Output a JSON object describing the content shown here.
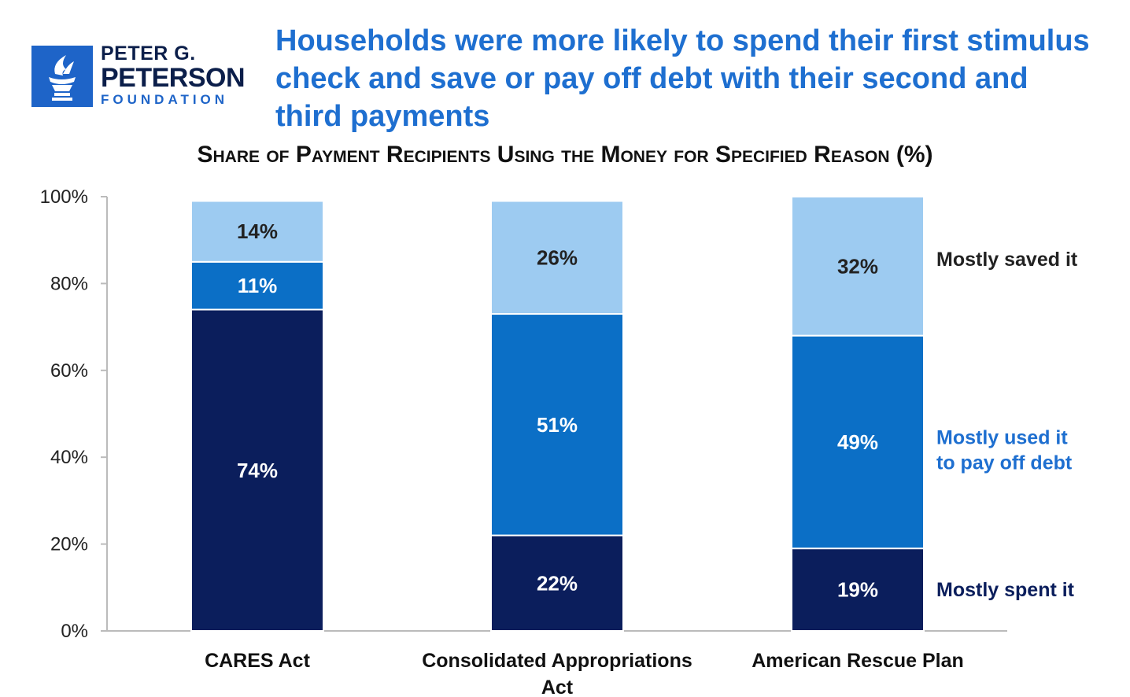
{
  "logo": {
    "line1": "PETER G.",
    "line2": "PETERSON",
    "line3": "FOUNDATION"
  },
  "chart_data": {
    "type": "bar",
    "stacked": true,
    "title": "Households were more likely to spend their first stimulus check and save or pay off debt with their second and third payments",
    "subtitle": "Share of Payment Recipients Using the Money for Specified Reason (%)",
    "categories": [
      [
        "CARES Act"
      ],
      [
        "Consolidated Appropriations",
        "Act"
      ],
      [
        "American Rescue Plan"
      ]
    ],
    "series": [
      {
        "name": "Mostly spent it",
        "name_lines": [
          "Mostly spent it"
        ],
        "color": "#0b1e5c",
        "text_color": "#0b1e5c",
        "values": [
          74,
          22,
          19
        ]
      },
      {
        "name": "Mostly used it to pay off debt",
        "name_lines": [
          "Mostly used it",
          "to pay off debt"
        ],
        "color": "#0b6fc6",
        "text_color": "#1e6fd0",
        "values": [
          11,
          51,
          49
        ]
      },
      {
        "name": "Mostly saved it",
        "name_lines": [
          "Mostly saved it"
        ],
        "color": "#9dcbf1",
        "text_color": "#222222",
        "values": [
          14,
          26,
          32
        ]
      }
    ],
    "ylim": [
      0,
      100
    ],
    "yticks": [
      0,
      20,
      40,
      60,
      80,
      100
    ],
    "ytick_labels": [
      "0%",
      "20%",
      "40%",
      "60%",
      "80%",
      "100%"
    ],
    "value_suffix": "%",
    "grid": false,
    "legend": "right"
  }
}
